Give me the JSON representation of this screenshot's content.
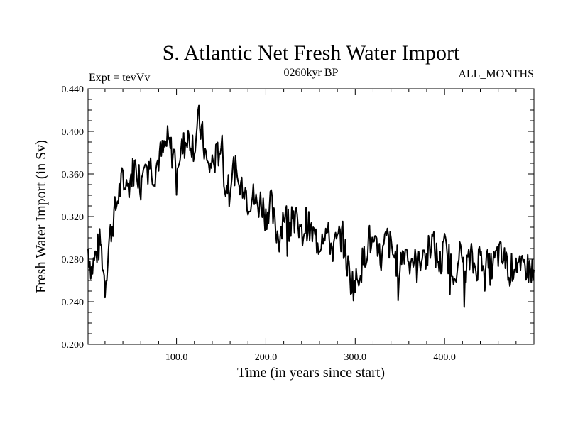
{
  "chart_data": {
    "type": "line",
    "title": "S. Atlantic Net Fresh Water Import",
    "subtitle_left": "Expt = tevVv",
    "subtitle_center": "0260kyr BP",
    "subtitle_right": "ALL_MONTHS",
    "xlabel": "Time (in years since start)",
    "ylabel": "Fresh Water Import (in Sv)",
    "xlim": [
      1,
      500
    ],
    "ylim": [
      0.2,
      0.44
    ],
    "x_ticks": [
      100,
      200,
      300,
      400
    ],
    "x_tick_labels": [
      "100.0",
      "200.0",
      "300.0",
      "400.0"
    ],
    "y_ticks": [
      0.2,
      0.24,
      0.28,
      0.32,
      0.36,
      0.4,
      0.44
    ],
    "y_tick_labels": [
      "0.200",
      "0.240",
      "0.280",
      "0.320",
      "0.360",
      "0.400",
      "0.440"
    ],
    "line_color": "#000000",
    "series": [
      {
        "name": "Fresh Water Import",
        "x": [
          1,
          5,
          10,
          15,
          20,
          25,
          30,
          35,
          40,
          45,
          50,
          55,
          60,
          65,
          70,
          75,
          80,
          85,
          90,
          95,
          100,
          105,
          110,
          115,
          120,
          125,
          130,
          135,
          140,
          145,
          150,
          155,
          160,
          165,
          170,
          175,
          180,
          185,
          190,
          195,
          200,
          205,
          210,
          215,
          220,
          225,
          230,
          235,
          240,
          245,
          250,
          255,
          260,
          265,
          270,
          275,
          280,
          285,
          290,
          295,
          300,
          305,
          310,
          315,
          320,
          325,
          330,
          335,
          340,
          345,
          350,
          355,
          360,
          365,
          370,
          375,
          380,
          385,
          390,
          395,
          400,
          405,
          410,
          415,
          420,
          425,
          430,
          435,
          440,
          445,
          450,
          455,
          460,
          465,
          470,
          475,
          480,
          485,
          490,
          495,
          500
        ],
        "values": [
          0.29,
          0.27,
          0.285,
          0.296,
          0.255,
          0.3,
          0.32,
          0.34,
          0.355,
          0.345,
          0.36,
          0.37,
          0.35,
          0.385,
          0.37,
          0.36,
          0.375,
          0.38,
          0.39,
          0.38,
          0.375,
          0.38,
          0.39,
          0.395,
          0.385,
          0.41,
          0.39,
          0.365,
          0.37,
          0.375,
          0.39,
          0.345,
          0.36,
          0.365,
          0.345,
          0.355,
          0.335,
          0.34,
          0.33,
          0.335,
          0.32,
          0.335,
          0.31,
          0.3,
          0.325,
          0.315,
          0.33,
          0.31,
          0.3,
          0.315,
          0.305,
          0.3,
          0.295,
          0.31,
          0.3,
          0.29,
          0.295,
          0.305,
          0.28,
          0.26,
          0.255,
          0.27,
          0.28,
          0.3,
          0.29,
          0.285,
          0.28,
          0.3,
          0.29,
          0.28,
          0.275,
          0.29,
          0.285,
          0.28,
          0.27,
          0.29,
          0.28,
          0.3,
          0.285,
          0.275,
          0.29,
          0.28,
          0.27,
          0.285,
          0.28,
          0.275,
          0.28,
          0.27,
          0.285,
          0.28,
          0.27,
          0.275,
          0.285,
          0.28,
          0.275,
          0.27,
          0.28,
          0.265,
          0.275,
          0.27,
          0.27
        ]
      }
    ]
  }
}
